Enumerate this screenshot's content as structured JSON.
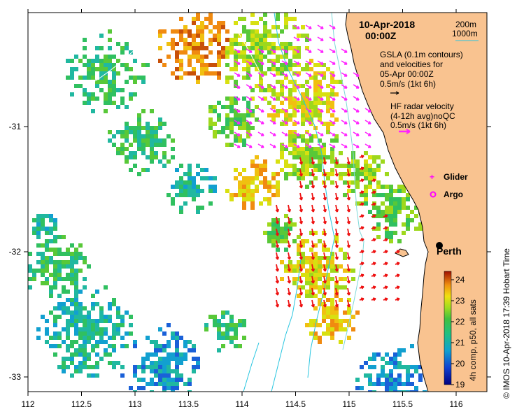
{
  "title": {
    "date": "10-Apr-2018",
    "time": "00:00Z"
  },
  "depth_contours": [
    {
      "label": "200m",
      "color": "#7fd9d9"
    },
    {
      "label": "1000m",
      "color": "#29c6e0"
    }
  ],
  "gsla_legend": {
    "line1": "GSLA (0.1m contours)",
    "line2": "and velocities for",
    "line3": "05-Apr 00:00Z",
    "scale": "0.5m/s (1kt 6h)",
    "arrow_color": "#000000"
  },
  "hf_legend": {
    "line1": "HF radar velocity",
    "line2": "(4-12h avg)noQC",
    "scale": "0.5m/s (1kt 6h)",
    "arrow_color": "#ff22ff"
  },
  "markers": [
    {
      "symbol": "+",
      "label": "Glider",
      "color": "#ff00ff"
    },
    {
      "symbol": "o",
      "label": "Argo",
      "color": "#ff00ff"
    }
  ],
  "place": {
    "name": "Perth"
  },
  "axes": {
    "x_ticks": [
      "112",
      "112.5",
      "113",
      "113.5",
      "114",
      "114.5",
      "115",
      "115.5",
      "116"
    ],
    "y_ticks": [
      "-31",
      "-32",
      "-33"
    ]
  },
  "colorbar": {
    "title": "4h comp, p50, all sats",
    "ticks": [
      "24",
      "23",
      "22",
      "21",
      "20",
      "19"
    ],
    "min": 19,
    "max": 24.4
  },
  "credit": "© IMOS 10-Apr-2018 17:39 Hobart Time",
  "colors": {
    "land": "#f9c390",
    "radar_vectors": "#ee1111",
    "hf_vectors": "#ff22ff",
    "coast": "#000000"
  }
}
